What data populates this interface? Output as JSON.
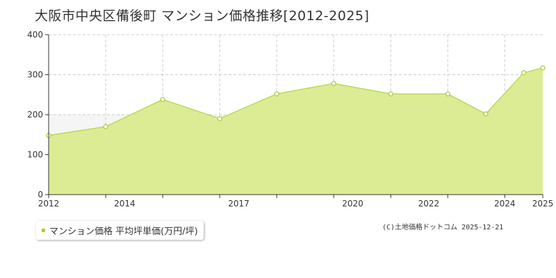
{
  "title": "大阪市中央区備後町 マンション価格推移[2012-2025]",
  "legend": {
    "label": "マンション価格 平均坪単価(万円/坪)"
  },
  "credit": "(C)土地価格ドットコム 2025-12-21",
  "colors": {
    "fill": "#dcec94",
    "line": "#b9d957",
    "marker": "#aacc33",
    "band": "#f5f5f5",
    "grid": "#cccccc"
  },
  "chart_data": {
    "type": "area",
    "x_ticks": [
      "2012",
      "2014",
      "2017",
      "2020",
      "2022",
      "2024",
      "2025"
    ],
    "y_ticks": [
      "0",
      "100",
      "200",
      "300",
      "400"
    ],
    "ylim": [
      0,
      400
    ],
    "xlim": [
      2012,
      2025
    ],
    "grid": true,
    "series": [
      {
        "name": "マンション価格 平均坪単価(万円/坪)",
        "x": [
          2012,
          2013.5,
          2015,
          2016.5,
          2018,
          2019.5,
          2021,
          2022.5,
          2023.5,
          2024.5,
          2025
        ],
        "values": [
          148,
          170,
          238,
          190,
          252,
          278,
          252,
          252,
          202,
          305,
          317
        ]
      }
    ]
  }
}
